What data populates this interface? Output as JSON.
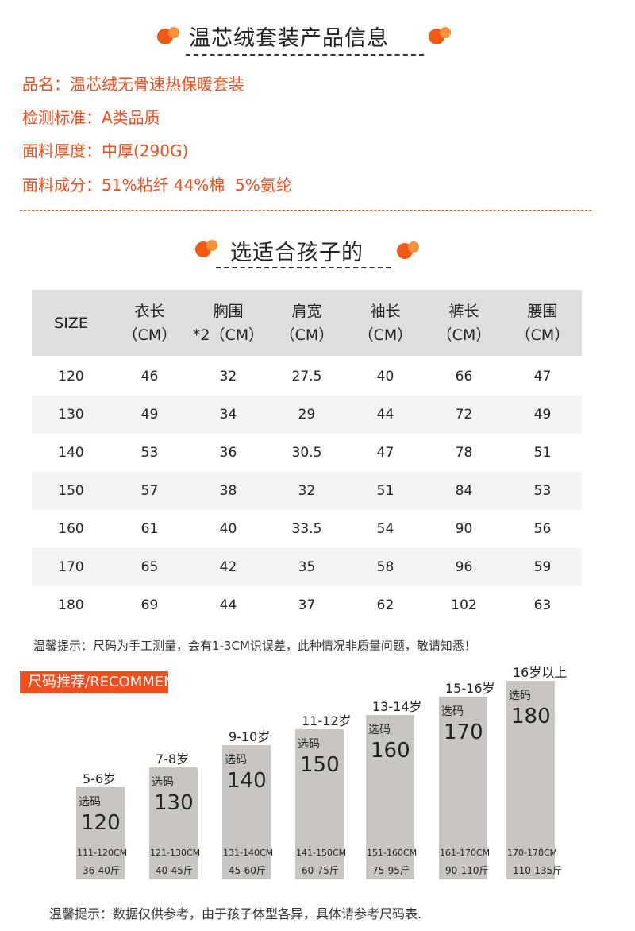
{
  "header": {
    "title": "温芯绒套装产品信息"
  },
  "info": {
    "lines": [
      "品名：温芯绒无骨速热保暖套装",
      "检测标准：A类品质",
      "面料厚度：中厚(290G)",
      "面料成分：51%粘纤 44%棉  5%氨纶"
    ]
  },
  "section": {
    "title": "选适合孩子的"
  },
  "table": {
    "columns": [
      [
        "SIZE"
      ],
      [
        "衣长",
        "（CM）"
      ],
      [
        "胸围",
        "*2（CM）"
      ],
      [
        "肩宽",
        "（CM）"
      ],
      [
        "袖长",
        "（CM）"
      ],
      [
        "裤长",
        "（CM）"
      ],
      [
        "腰围",
        "（CM）"
      ]
    ],
    "rows": [
      [
        120,
        46,
        32,
        27.5,
        40,
        66,
        47
      ],
      [
        130,
        49,
        34,
        29,
        44,
        72,
        49
      ],
      [
        140,
        53,
        36,
        30.5,
        47,
        78,
        51
      ],
      [
        150,
        57,
        38,
        32,
        51,
        84,
        53
      ],
      [
        160,
        61,
        40,
        33.5,
        54,
        90,
        56
      ],
      [
        170,
        65,
        42,
        35,
        58,
        96,
        59
      ],
      [
        180,
        69,
        44,
        37,
        62,
        102,
        63
      ]
    ]
  },
  "note": "温馨提示：尺码为手工测量，会有1-3CM识误差，此种情况非质量问题，敬请知悉！",
  "recommend": {
    "title": "尺码推荐/RECOMMEND",
    "items": [
      {
        "age": "5-6岁",
        "pick": "选码",
        "size": "120",
        "height": "111-120CM",
        "weight": "36-40斤"
      },
      {
        "age": "7-8岁",
        "pick": "选码",
        "size": "130",
        "height": "121-130CM",
        "weight": "40-45斤"
      },
      {
        "age": "9-10岁",
        "pick": "选码",
        "size": "140",
        "height": "131-140CM",
        "weight": "45-60斤"
      },
      {
        "age": "11-12岁",
        "pick": "选码",
        "size": "150",
        "height": "141-150CM",
        "weight": "60-75斤"
      },
      {
        "age": "13-14岁",
        "pick": "选码",
        "size": "160",
        "height": "151-160CM",
        "weight": "75-95斤"
      },
      {
        "age": "15-16岁",
        "pick": "选码",
        "size": "170",
        "height": "161-170CM",
        "weight": "90-110斤"
      },
      {
        "age": "16岁以上",
        "pick": "选码",
        "size": "180",
        "height": "170-178CM",
        "weight": "110-135斤"
      }
    ]
  },
  "footer": "温馨提示：数据仅供参考，由于孩子体型各异，具体请参考尺码表."
}
